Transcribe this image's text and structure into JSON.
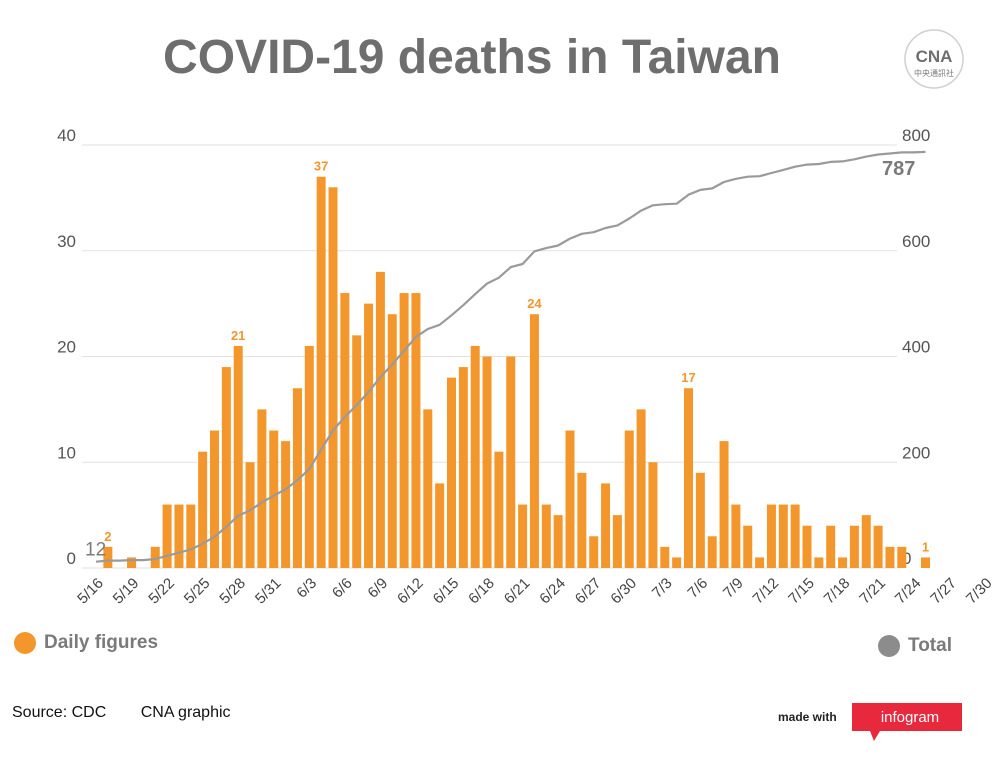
{
  "header": {
    "title": "COVID-19 deaths in Taiwan"
  },
  "logo": {
    "mark": "CNA",
    "caption": "中央通訊社"
  },
  "legend": {
    "daily": {
      "label": "Daily figures",
      "color": "#f3972c"
    },
    "total": {
      "label": "Total",
      "color": "#8c8c8c"
    }
  },
  "footer": {
    "source": "Source: CDC",
    "credit": "CNA graphic",
    "made_with": "made with",
    "brand": "infogram"
  },
  "chart_data": {
    "type": "bar",
    "start_date": "5/16",
    "x_tick_labels": [
      "5/16",
      "5/19",
      "5/22",
      "5/25",
      "5/28",
      "5/31",
      "6/3",
      "6/6",
      "6/9",
      "6/12",
      "6/15",
      "6/18",
      "6/21",
      "6/24",
      "6/27",
      "6/30",
      "7/3",
      "7/6",
      "7/9",
      "7/12",
      "7/15",
      "7/18",
      "7/21",
      "7/24",
      "7/27",
      "7/30"
    ],
    "left_axis": {
      "range": [
        0,
        40
      ],
      "ticks": [
        0,
        10,
        20,
        30,
        40
      ]
    },
    "right_axis": {
      "range": [
        0,
        800
      ],
      "ticks": [
        0,
        200,
        400,
        600,
        800
      ]
    },
    "grid": true,
    "series": [
      {
        "name": "Daily figures",
        "axis": "left",
        "type": "bar",
        "color": "#f3972c",
        "values": [
          0,
          2,
          0,
          1,
          0,
          2,
          6,
          6,
          6,
          11,
          13,
          19,
          21,
          10,
          15,
          13,
          12,
          17,
          21,
          37,
          36,
          26,
          22,
          25,
          28,
          24,
          26,
          26,
          15,
          8,
          18,
          19,
          21,
          20,
          11,
          20,
          6,
          24,
          6,
          5,
          13,
          9,
          3,
          8,
          5,
          13,
          15,
          10,
          2,
          1,
          17,
          9,
          3,
          12,
          6,
          4,
          1,
          6,
          6,
          6,
          4,
          1,
          4,
          1,
          4,
          5,
          4,
          2,
          2,
          0,
          1
        ]
      },
      {
        "name": "Total",
        "axis": "right",
        "type": "line",
        "color": "#9a9a9a",
        "values": [
          12,
          14,
          14,
          15,
          15,
          17,
          23,
          29,
          35,
          46,
          59,
          78,
          99,
          109,
          124,
          137,
          149,
          166,
          187,
          224,
          260,
          286,
          308,
          333,
          361,
          385,
          411,
          437,
          452,
          460,
          478,
          497,
          518,
          538,
          549,
          569,
          575,
          599,
          605,
          610,
          623,
          632,
          635,
          643,
          648,
          661,
          676,
          686,
          688,
          689,
          706,
          715,
          718,
          730,
          736,
          740,
          741,
          747,
          753,
          759,
          763,
          764,
          768,
          769,
          773,
          778,
          782,
          784,
          786,
          786,
          787
        ]
      }
    ],
    "annotations": [
      {
        "index": 1,
        "text": "2"
      },
      {
        "index": 12,
        "text": "21"
      },
      {
        "index": 19,
        "text": "37"
      },
      {
        "index": 37,
        "text": "24"
      },
      {
        "index": 50,
        "text": "17"
      },
      {
        "index": 70,
        "text": "1"
      }
    ],
    "total_start_label": "12",
    "total_end_label": "787"
  }
}
